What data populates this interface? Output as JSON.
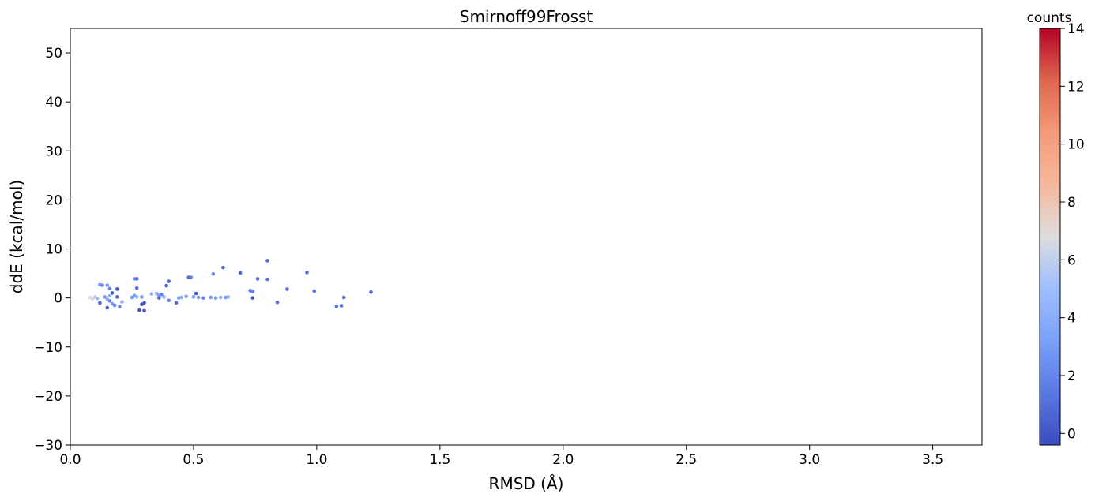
{
  "chart_data": {
    "type": "scatter",
    "title": "Smirnoff99Frosst",
    "xlabel": "RMSD (Å)",
    "ylabel": "ddE (kcal/mol)",
    "xlim": [
      0.0,
      3.7
    ],
    "ylim": [
      -30,
      55
    ],
    "xticks": [
      0.0,
      0.5,
      1.0,
      1.5,
      2.0,
      2.5,
      3.0,
      3.5
    ],
    "xtick_labels": [
      "0.0",
      "0.5",
      "1.0",
      "1.5",
      "2.0",
      "2.5",
      "3.0",
      "3.5"
    ],
    "yticks": [
      -30,
      -20,
      -10,
      0,
      10,
      20,
      30,
      40,
      50
    ],
    "ytick_labels": [
      "−30",
      "−20",
      "−10",
      "0",
      "10",
      "20",
      "30",
      "40",
      "50"
    ],
    "grid": false,
    "colorbar": {
      "title": "counts",
      "colormap": "coolwarm",
      "range": [
        -0.4,
        14
      ],
      "ticks": [
        0,
        2,
        4,
        6,
        8,
        10,
        12,
        14
      ],
      "tick_labels": [
        "0",
        "2",
        "4",
        "6",
        "8",
        "10",
        "12",
        "14"
      ]
    },
    "points": [
      {
        "x": 0.08,
        "y": 0.1,
        "c": 7
      },
      {
        "x": 0.09,
        "y": -0.2,
        "c": 6.5
      },
      {
        "x": 0.1,
        "y": 0.2,
        "c": 6
      },
      {
        "x": 0.11,
        "y": -0.1,
        "c": 5
      },
      {
        "x": 0.12,
        "y": -1.0,
        "c": 0.5
      },
      {
        "x": 0.12,
        "y": 2.7,
        "c": 3
      },
      {
        "x": 0.13,
        "y": 2.6,
        "c": 2
      },
      {
        "x": 0.14,
        "y": 0.2,
        "c": 3
      },
      {
        "x": 0.15,
        "y": -0.3,
        "c": 4
      },
      {
        "x": 0.15,
        "y": 2.6,
        "c": 3
      },
      {
        "x": 0.16,
        "y": 0.4,
        "c": 4
      },
      {
        "x": 0.15,
        "y": -2.0,
        "c": 0
      },
      {
        "x": 0.16,
        "y": 1.9,
        "c": 2
      },
      {
        "x": 0.16,
        "y": -0.6,
        "c": 2
      },
      {
        "x": 0.17,
        "y": 1.0,
        "c": 0
      },
      {
        "x": 0.17,
        "y": -1.2,
        "c": 3
      },
      {
        "x": 0.18,
        "y": -1.5,
        "c": 2
      },
      {
        "x": 0.19,
        "y": 1.8,
        "c": 0
      },
      {
        "x": 0.19,
        "y": 0.2,
        "c": 0.5
      },
      {
        "x": 0.2,
        "y": -1.8,
        "c": 2
      },
      {
        "x": 0.21,
        "y": -0.8,
        "c": 4
      },
      {
        "x": 0.25,
        "y": 0.1,
        "c": 3
      },
      {
        "x": 0.26,
        "y": 0.5,
        "c": 3
      },
      {
        "x": 0.26,
        "y": 3.9,
        "c": 2
      },
      {
        "x": 0.27,
        "y": 3.9,
        "c": 0.5
      },
      {
        "x": 0.27,
        "y": 0.2,
        "c": 4
      },
      {
        "x": 0.27,
        "y": 2.0,
        "c": 1
      },
      {
        "x": 0.28,
        "y": -2.5,
        "c": 0
      },
      {
        "x": 0.29,
        "y": 0.2,
        "c": 3
      },
      {
        "x": 0.29,
        "y": -1.3,
        "c": 0
      },
      {
        "x": 0.3,
        "y": -1.0,
        "c": 0
      },
      {
        "x": 0.3,
        "y": -2.6,
        "c": 0
      },
      {
        "x": 0.33,
        "y": 0.8,
        "c": 4
      },
      {
        "x": 0.35,
        "y": 0.9,
        "c": 4
      },
      {
        "x": 0.36,
        "y": 0.5,
        "c": 3
      },
      {
        "x": 0.36,
        "y": 0.0,
        "c": 1
      },
      {
        "x": 0.37,
        "y": 0.7,
        "c": 2
      },
      {
        "x": 0.38,
        "y": 0.2,
        "c": 4
      },
      {
        "x": 0.39,
        "y": 2.5,
        "c": 0
      },
      {
        "x": 0.4,
        "y": 3.4,
        "c": 1
      },
      {
        "x": 0.4,
        "y": -0.5,
        "c": 2
      },
      {
        "x": 0.43,
        "y": -1.0,
        "c": 1
      },
      {
        "x": 0.44,
        "y": 0.0,
        "c": 3
      },
      {
        "x": 0.45,
        "y": 0.1,
        "c": 4
      },
      {
        "x": 0.47,
        "y": 0.3,
        "c": 3
      },
      {
        "x": 0.48,
        "y": 4.2,
        "c": 1
      },
      {
        "x": 0.49,
        "y": 4.2,
        "c": 2
      },
      {
        "x": 0.5,
        "y": 0.2,
        "c": 3
      },
      {
        "x": 0.51,
        "y": 0.9,
        "c": 0
      },
      {
        "x": 0.52,
        "y": 0.1,
        "c": 3
      },
      {
        "x": 0.54,
        "y": 0.0,
        "c": 2
      },
      {
        "x": 0.57,
        "y": 0.1,
        "c": 3
      },
      {
        "x": 0.58,
        "y": 4.9,
        "c": 2
      },
      {
        "x": 0.59,
        "y": 0.0,
        "c": 3
      },
      {
        "x": 0.61,
        "y": 0.1,
        "c": 4
      },
      {
        "x": 0.62,
        "y": 6.2,
        "c": 1
      },
      {
        "x": 0.63,
        "y": 0.1,
        "c": 3
      },
      {
        "x": 0.64,
        "y": 0.2,
        "c": 4
      },
      {
        "x": 0.69,
        "y": 5.1,
        "c": 1
      },
      {
        "x": 0.73,
        "y": 1.5,
        "c": 1
      },
      {
        "x": 0.74,
        "y": 0.0,
        "c": 0
      },
      {
        "x": 0.74,
        "y": 1.3,
        "c": 2
      },
      {
        "x": 0.76,
        "y": 3.9,
        "c": 1
      },
      {
        "x": 0.8,
        "y": 7.6,
        "c": 1
      },
      {
        "x": 0.8,
        "y": 3.8,
        "c": 1
      },
      {
        "x": 0.84,
        "y": -0.9,
        "c": 1
      },
      {
        "x": 0.88,
        "y": 1.8,
        "c": 1
      },
      {
        "x": 0.96,
        "y": 5.2,
        "c": 1
      },
      {
        "x": 0.99,
        "y": 1.4,
        "c": 1
      },
      {
        "x": 1.08,
        "y": -1.7,
        "c": 1
      },
      {
        "x": 1.1,
        "y": -1.6,
        "c": 1
      },
      {
        "x": 1.11,
        "y": 0.1,
        "c": 1
      },
      {
        "x": 1.22,
        "y": 1.2,
        "c": 1
      }
    ]
  }
}
